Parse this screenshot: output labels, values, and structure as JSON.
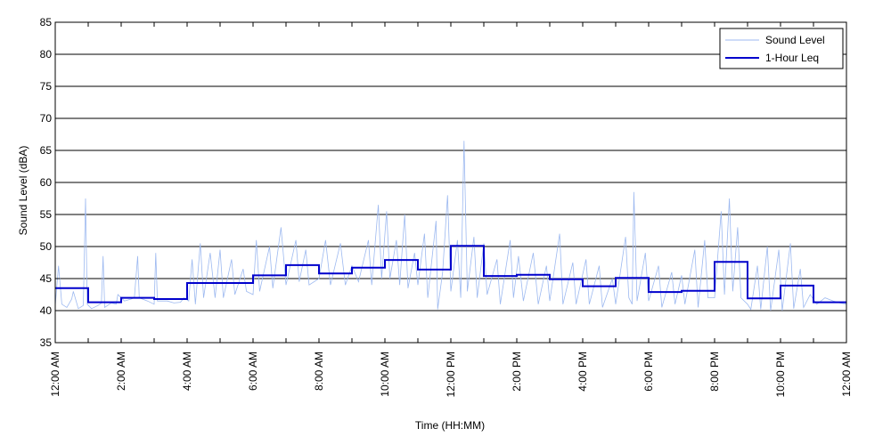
{
  "chart_data": {
    "type": "line",
    "title": "",
    "xlabel": "Time (HH:MM)",
    "ylabel": "Sound Level (dBA)",
    "x_unit": "hours",
    "xlim": [
      0,
      24
    ],
    "ylim": [
      35,
      85
    ],
    "y_ticks": [
      35,
      40,
      45,
      50,
      55,
      60,
      65,
      70,
      75,
      80,
      85
    ],
    "x_ticks": [
      0,
      2,
      4,
      6,
      8,
      10,
      12,
      14,
      16,
      18,
      20,
      22,
      24
    ],
    "x_tick_labels": [
      "12:00 AM",
      "2:00 AM",
      "4:00 AM",
      "6:00 AM",
      "8:00 AM",
      "10:00 AM",
      "12:00 PM",
      "2:00 PM",
      "4:00 PM",
      "6:00 PM",
      "8:00 PM",
      "10:00 PM",
      "12:00 AM"
    ],
    "grid": "horizontal",
    "legend_position": "top-right",
    "series": [
      {
        "name": "Sound Level",
        "color": "#9db9f0",
        "style": "thin",
        "points": [
          [
            0.0,
            40.8
          ],
          [
            0.1,
            47.0
          ],
          [
            0.2,
            41.0
          ],
          [
            0.35,
            40.5
          ],
          [
            0.5,
            41.8
          ],
          [
            0.55,
            43.0
          ],
          [
            0.7,
            40.3
          ],
          [
            0.85,
            40.8
          ],
          [
            0.92,
            57.5
          ],
          [
            0.97,
            41.0
          ],
          [
            1.1,
            40.3
          ],
          [
            1.3,
            40.8
          ],
          [
            1.4,
            41.2
          ],
          [
            1.45,
            48.5
          ],
          [
            1.5,
            40.5
          ],
          [
            1.7,
            41.2
          ],
          [
            1.85,
            41.0
          ],
          [
            1.9,
            42.5
          ],
          [
            2.1,
            41.5
          ],
          [
            2.3,
            41.8
          ],
          [
            2.4,
            42.0
          ],
          [
            2.5,
            48.5
          ],
          [
            2.55,
            42.0
          ],
          [
            2.8,
            41.5
          ],
          [
            3.0,
            41.0
          ],
          [
            3.05,
            49.0
          ],
          [
            3.1,
            41.5
          ],
          [
            3.4,
            41.5
          ],
          [
            3.6,
            41.2
          ],
          [
            3.8,
            41.3
          ],
          [
            3.9,
            42.0
          ],
          [
            4.05,
            41.5
          ],
          [
            4.15,
            48.0
          ],
          [
            4.25,
            41.0
          ],
          [
            4.4,
            50.5
          ],
          [
            4.5,
            42.0
          ],
          [
            4.7,
            49.0
          ],
          [
            4.85,
            42.0
          ],
          [
            5.0,
            49.5
          ],
          [
            5.1,
            42.0
          ],
          [
            5.35,
            48.0
          ],
          [
            5.45,
            42.5
          ],
          [
            5.7,
            46.5
          ],
          [
            5.8,
            43.0
          ],
          [
            6.0,
            42.5
          ],
          [
            6.1,
            51.0
          ],
          [
            6.2,
            43.0
          ],
          [
            6.5,
            50.0
          ],
          [
            6.6,
            43.5
          ],
          [
            6.85,
            53.0
          ],
          [
            7.0,
            44.0
          ],
          [
            7.3,
            51.0
          ],
          [
            7.4,
            44.5
          ],
          [
            7.6,
            49.5
          ],
          [
            7.7,
            44.0
          ],
          [
            8.0,
            45.0
          ],
          [
            8.2,
            51.0
          ],
          [
            8.35,
            44.0
          ],
          [
            8.65,
            50.5
          ],
          [
            8.8,
            44.0
          ],
          [
            9.0,
            47.0
          ],
          [
            9.2,
            44.5
          ],
          [
            9.5,
            51.0
          ],
          [
            9.6,
            44.0
          ],
          [
            9.8,
            56.5
          ],
          [
            9.9,
            45.0
          ],
          [
            10.05,
            55.5
          ],
          [
            10.15,
            45.0
          ],
          [
            10.35,
            51.0
          ],
          [
            10.45,
            44.0
          ],
          [
            10.6,
            55.0
          ],
          [
            10.7,
            43.5
          ],
          [
            10.9,
            49.0
          ],
          [
            11.0,
            44.0
          ],
          [
            11.2,
            52.0
          ],
          [
            11.3,
            42.0
          ],
          [
            11.55,
            54.0
          ],
          [
            11.6,
            40.2
          ],
          [
            11.75,
            46.0
          ],
          [
            11.9,
            58.0
          ],
          [
            12.0,
            43.0
          ],
          [
            12.2,
            51.0
          ],
          [
            12.3,
            42.0
          ],
          [
            12.4,
            66.5
          ],
          [
            12.5,
            43.0
          ],
          [
            12.7,
            51.5
          ],
          [
            12.8,
            42.0
          ],
          [
            13.0,
            50.5
          ],
          [
            13.1,
            42.5
          ],
          [
            13.4,
            48.0
          ],
          [
            13.5,
            41.0
          ],
          [
            13.8,
            51.0
          ],
          [
            13.9,
            42.0
          ],
          [
            14.05,
            48.5
          ],
          [
            14.2,
            41.5
          ],
          [
            14.5,
            49.0
          ],
          [
            14.65,
            41.0
          ],
          [
            14.9,
            47.0
          ],
          [
            15.0,
            41.5
          ],
          [
            15.3,
            52.0
          ],
          [
            15.4,
            41.0
          ],
          [
            15.7,
            47.5
          ],
          [
            15.8,
            41.0
          ],
          [
            16.1,
            48.0
          ],
          [
            16.2,
            41.0
          ],
          [
            16.5,
            47.0
          ],
          [
            16.6,
            40.5
          ],
          [
            16.9,
            45.0
          ],
          [
            17.0,
            41.0
          ],
          [
            17.3,
            51.5
          ],
          [
            17.4,
            42.0
          ],
          [
            17.5,
            41.0
          ],
          [
            17.55,
            58.5
          ],
          [
            17.65,
            41.5
          ],
          [
            17.9,
            49.0
          ],
          [
            18.0,
            41.5
          ],
          [
            18.3,
            47.0
          ],
          [
            18.4,
            40.5
          ],
          [
            18.7,
            46.0
          ],
          [
            18.8,
            41.0
          ],
          [
            19.0,
            45.5
          ],
          [
            19.1,
            41.0
          ],
          [
            19.4,
            49.5
          ],
          [
            19.5,
            40.5
          ],
          [
            19.7,
            51.0
          ],
          [
            19.8,
            42.0
          ],
          [
            20.0,
            42.0
          ],
          [
            20.2,
            55.5
          ],
          [
            20.3,
            42.5
          ],
          [
            20.45,
            57.5
          ],
          [
            20.55,
            43.0
          ],
          [
            20.7,
            53.0
          ],
          [
            20.8,
            42.0
          ],
          [
            21.0,
            41.0
          ],
          [
            21.1,
            40.2
          ],
          [
            21.3,
            47.0
          ],
          [
            21.4,
            40.2
          ],
          [
            21.6,
            50.0
          ],
          [
            21.7,
            40.0
          ],
          [
            21.95,
            49.5
          ],
          [
            22.05,
            40.0
          ],
          [
            22.3,
            50.5
          ],
          [
            22.4,
            40.3
          ],
          [
            22.6,
            46.5
          ],
          [
            22.7,
            40.5
          ],
          [
            22.9,
            42.5
          ],
          [
            23.1,
            41.0
          ],
          [
            23.35,
            42.0
          ],
          [
            23.6,
            41.5
          ],
          [
            23.8,
            41.2
          ],
          [
            24.0,
            41.0
          ]
        ]
      },
      {
        "name": "1-Hour Leq",
        "color": "#0000cc",
        "style": "step",
        "values": [
          43.5,
          41.3,
          42.0,
          41.8,
          44.3,
          44.3,
          45.5,
          47.1,
          45.8,
          46.7,
          47.9,
          46.4,
          50.1,
          45.4,
          45.6,
          44.9,
          43.8,
          45.1,
          42.9,
          43.1,
          47.6,
          41.9,
          43.9,
          41.3
        ]
      }
    ]
  }
}
